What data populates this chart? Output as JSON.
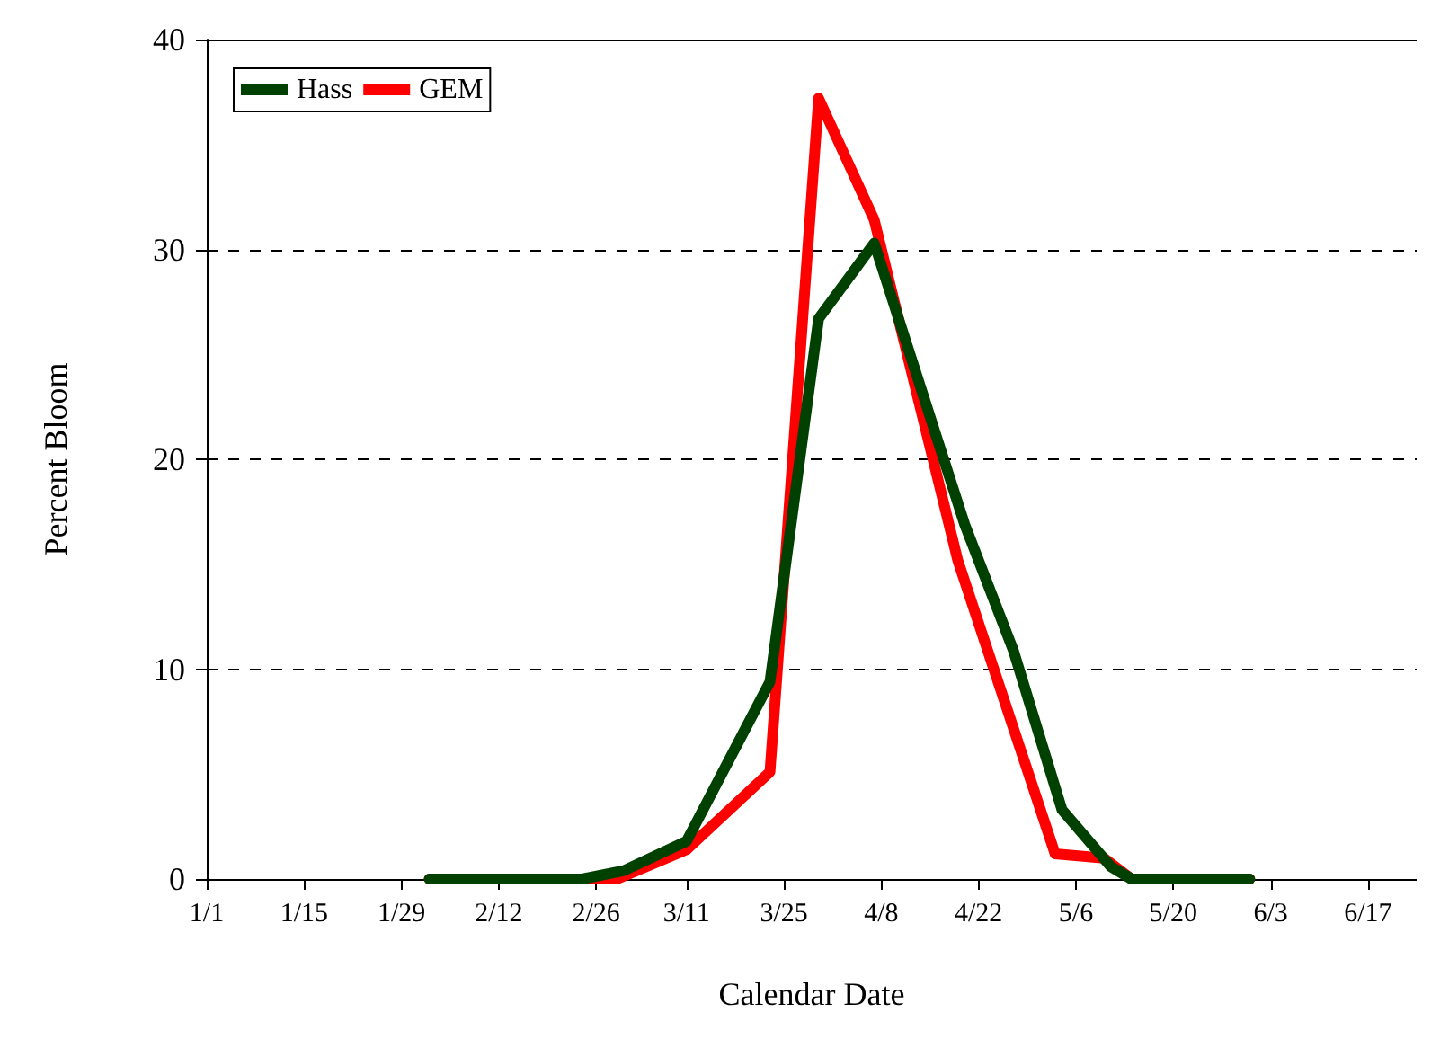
{
  "chart_data": {
    "type": "line",
    "xlabel": "Calendar Date",
    "ylabel": "Percent Bloom",
    "xlim": [
      "--01-01",
      "--06-24"
    ],
    "xticks": [
      {
        "value": "--01-01",
        "label": "1/1"
      },
      {
        "value": "--01-15",
        "label": "1/15"
      },
      {
        "value": "--01-29",
        "label": "1/29"
      },
      {
        "value": "--02-12",
        "label": "2/12"
      },
      {
        "value": "--02-26",
        "label": "2/26"
      },
      {
        "value": "--03-11",
        "label": "3/11"
      },
      {
        "value": "--03-25",
        "label": "3/25"
      },
      {
        "value": "--04-08",
        "label": "4/8"
      },
      {
        "value": "--04-22",
        "label": "4/22"
      },
      {
        "value": "--05-06",
        "label": "5/6"
      },
      {
        "value": "--05-20",
        "label": "5/20"
      },
      {
        "value": "--06-03",
        "label": "6/3"
      },
      {
        "value": "--06-17",
        "label": "6/17"
      }
    ],
    "ylim": [
      0,
      40
    ],
    "yticks": [
      0,
      10,
      20,
      30,
      40
    ],
    "grid": "y",
    "legend": "top left",
    "marker": "none",
    "line_style": "solid",
    "series": [
      {
        "name": "Hass",
        "color": "#004000",
        "x": [
          "--02-02",
          "--02-24",
          "--03-02",
          "--03-11",
          "--03-23",
          "--03-30",
          "--04-07",
          "--04-20",
          "--04-27",
          "--05-04",
          "--05-11",
          "--05-14",
          "--05-31"
        ],
        "values": [
          0,
          0,
          0.4,
          1.8,
          9.4,
          26.7,
          30.3,
          16.9,
          10.9,
          3.3,
          0.6,
          0,
          0
        ]
      },
      {
        "name": "GEM",
        "color": "#ff0000",
        "x": [
          "--02-02",
          "--03-01",
          "--03-11",
          "--03-23",
          "--03-30",
          "--04-07",
          "--04-19",
          "--05-03",
          "--05-10",
          "--05-14",
          "--05-31"
        ],
        "values": [
          0,
          0,
          1.4,
          5.1,
          37.2,
          31.4,
          15.2,
          1.2,
          1.0,
          0,
          0
        ]
      }
    ]
  }
}
